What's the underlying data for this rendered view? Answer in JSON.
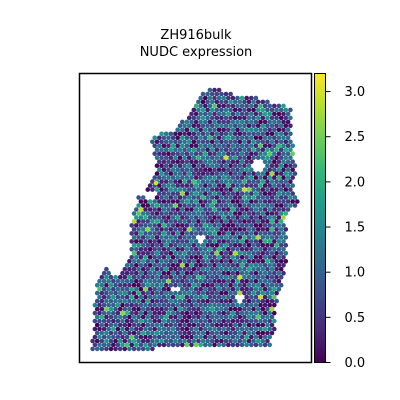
{
  "chart_data": {
    "type": "scatter",
    "title_line1": "ZH916bulk",
    "title_line2": "NUDC expression",
    "xlabel": "",
    "ylabel": "",
    "grid": false,
    "legend": "colorbar-right",
    "colormap": "viridis",
    "color_range": [
      0.0,
      3.2
    ],
    "colorbar_ticks": [
      "0.0",
      "0.5",
      "1.0",
      "1.5",
      "2.0",
      "2.5",
      "3.0"
    ],
    "colorbar_tick_values": [
      0.0,
      0.5,
      1.0,
      1.5,
      2.0,
      2.5,
      3.0
    ],
    "viridis_stops": [
      "#440154",
      "#482878",
      "#3e4989",
      "#31688e",
      "#26828e",
      "#1f9e89",
      "#35b779",
      "#6ece58",
      "#b5de2b",
      "#fde725"
    ],
    "frame_color": "#000000"
  }
}
